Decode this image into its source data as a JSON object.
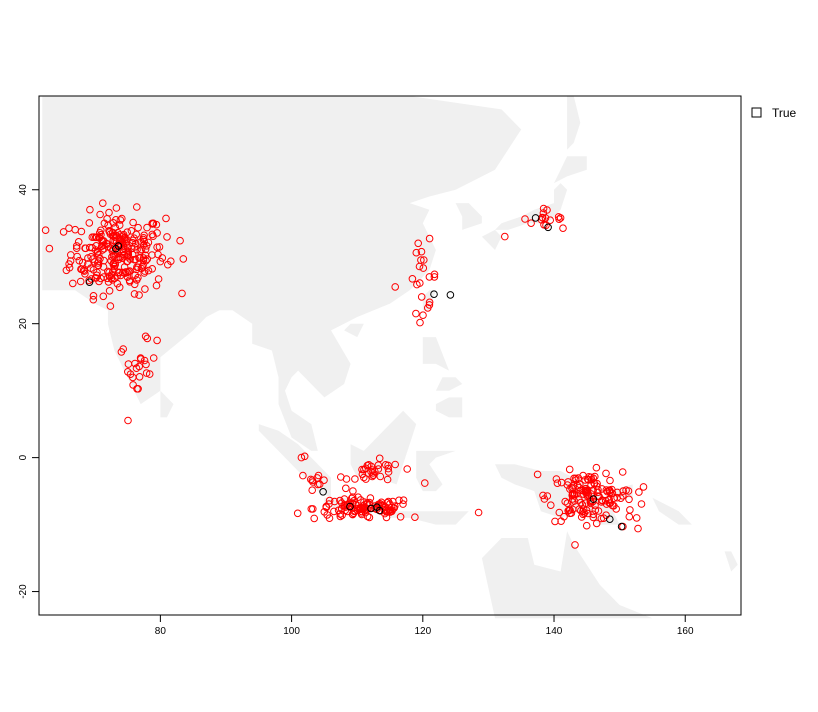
{
  "chart_data": {
    "type": "scatter",
    "title": "",
    "xlabel": "",
    "ylabel": "",
    "xlim": [
      61.5,
      168.5
    ],
    "ylim": [
      -23.5,
      54
    ],
    "x_ticks": [
      80,
      100,
      120,
      140,
      160
    ],
    "y_ticks": [
      -20,
      0,
      20,
      40
    ],
    "grid": false,
    "legend": {
      "position": "top-right-outside",
      "entries": [
        "True"
      ]
    },
    "background_map": {
      "region": "Asia-Pacific land mass",
      "color": "#f0f0f0"
    },
    "colors": {
      "false_points": "#ff0000",
      "true_points": "#000000"
    },
    "series": [
      {
        "name": "True",
        "color": "#000000",
        "x": [
          73.2,
          73.6,
          69.2,
          121.7,
          124.2,
          137.2,
          139.1,
          104.8,
          108.9,
          112.1,
          113.4,
          113.0,
          146.0,
          148.5,
          150.3
        ],
        "y": [
          31.2,
          31.6,
          26.2,
          24.4,
          24.3,
          35.8,
          34.4,
          -5.1,
          -7.3,
          -7.6,
          -7.9,
          -7.4,
          -6.2,
          -9.2,
          -10.3
        ]
      }
    ],
    "clusters": [
      {
        "color": "#ff0000",
        "cx": 73.5,
        "cy": 30.5,
        "sx": 3.6,
        "sy": 3.0,
        "n": 260
      },
      {
        "color": "#ff0000",
        "cx": 76.5,
        "cy": 13.0,
        "sx": 1.4,
        "sy": 2.2,
        "n": 22
      },
      {
        "color": "#ff0000",
        "cx": 120.0,
        "cy": 27.0,
        "sx": 1.1,
        "sy": 2.6,
        "n": 20
      },
      {
        "color": "#ff0000",
        "cx": 138.0,
        "cy": 35.8,
        "sx": 1.5,
        "sy": 0.6,
        "n": 14
      },
      {
        "color": "#ff0000",
        "cx": 111.0,
        "cy": -7.6,
        "sx": 3.8,
        "sy": 0.8,
        "n": 110
      },
      {
        "color": "#ff0000",
        "cx": 112.8,
        "cy": -2.3,
        "sx": 2.0,
        "sy": 0.9,
        "n": 30
      },
      {
        "color": "#ff0000",
        "cx": 104.0,
        "cy": -3.5,
        "sx": 0.8,
        "sy": 0.8,
        "n": 10
      },
      {
        "color": "#ff0000",
        "cx": 144.8,
        "cy": -5.8,
        "sx": 2.8,
        "sy": 1.8,
        "n": 130
      },
      {
        "color": "#ff0000",
        "cx": 150.5,
        "cy": -6.0,
        "sx": 1.5,
        "sy": 1.0,
        "n": 14
      }
    ],
    "extra_points": {
      "color": "#ff0000",
      "x": [
        83.0,
        79.5,
        78.0,
        101.5,
        102.0,
        115.8,
        120.3,
        121.0,
        132.5,
        136.5,
        141.0,
        150.5,
        152.8,
        152.6,
        107.5,
        118.8,
        128.5,
        137.5
      ],
      "y": [
        32.4,
        17.5,
        17.8,
        0.0,
        0.2,
        25.5,
        -3.8,
        22.8,
        33.0,
        35.0,
        35.8,
        -10.3,
        -10.6,
        -9.0,
        -2.9,
        -8.9,
        -8.2,
        -2.5
      ]
    }
  }
}
